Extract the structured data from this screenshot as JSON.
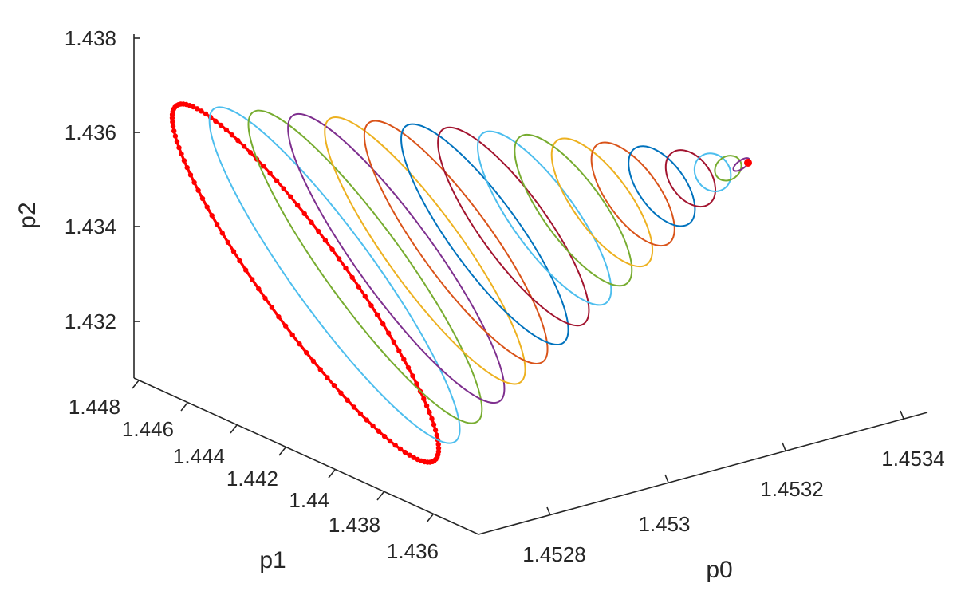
{
  "chart_data": {
    "type": "line",
    "subtype": "3d-parametric-curves",
    "title": "",
    "xlabel": "p0",
    "ylabel": "p1",
    "zlabel": "p2",
    "x_ticks": [
      "1.4528",
      "1.453",
      "1.4532",
      "1.4534"
    ],
    "y_ticks": [
      "1.436",
      "1.438",
      "1.44",
      "1.442",
      "1.444",
      "1.446",
      "1.448"
    ],
    "z_ticks": [
      "1.432",
      "1.434",
      "1.436",
      "1.438"
    ],
    "xlim": [
      1.4527,
      1.4535
    ],
    "ylim": [
      1.435,
      1.448
    ],
    "zlim": [
      1.431,
      1.438
    ],
    "grid": false,
    "legend": "none",
    "series": [
      {
        "color": "#ff0000",
        "style": "line-with-markers",
        "t": 0.0
      },
      {
        "color": "#4dbeee",
        "style": "line",
        "t": 0.066
      },
      {
        "color": "#77ac30",
        "style": "line",
        "t": 0.135
      },
      {
        "color": "#7e2f8e",
        "style": "line",
        "t": 0.205
      },
      {
        "color": "#edb120",
        "style": "line",
        "t": 0.27
      },
      {
        "color": "#d95319",
        "style": "line",
        "t": 0.34
      },
      {
        "color": "#0072bd",
        "style": "line",
        "t": 0.405
      },
      {
        "color": "#a2142f",
        "style": "line",
        "t": 0.47
      },
      {
        "color": "#4dbeee",
        "style": "line",
        "t": 0.54
      },
      {
        "color": "#77ac30",
        "style": "line",
        "t": 0.605
      },
      {
        "color": "#edb120",
        "style": "line",
        "t": 0.67
      },
      {
        "color": "#d95319",
        "style": "line",
        "t": 0.74
      },
      {
        "color": "#0072bd",
        "style": "line",
        "t": 0.805
      },
      {
        "color": "#a2142f",
        "style": "line",
        "t": 0.87
      },
      {
        "color": "#4dbeee",
        "style": "line",
        "t": 0.92
      },
      {
        "color": "#77ac30",
        "style": "line",
        "t": 0.955
      },
      {
        "color": "#7e2f8e",
        "style": "line",
        "t": 0.985
      },
      {
        "color": "#ff0000",
        "style": "point",
        "t": 1.0
      }
    ]
  }
}
